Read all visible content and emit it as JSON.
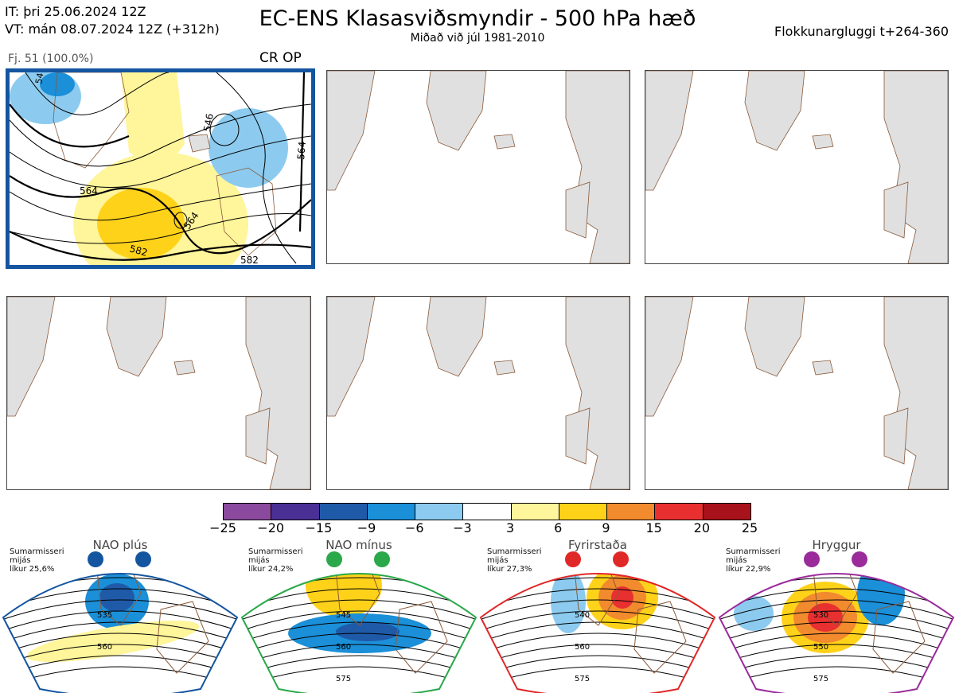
{
  "header": {
    "it_line": "IT: þri 25.06.2024 12Z",
    "vt_line": "VT: mán 08.07.2024 12Z  (+312h)",
    "title": "EC-ENS Klasasviðsmyndir - 500 hPa hæð",
    "subtitle": "Miðað við júl 1981-2010",
    "window": "Flokkunargluggi t+264-360"
  },
  "panels": [
    {
      "caption": "Fj. 51 (100.0%)",
      "tag": "CR OP",
      "active": true,
      "contours": [
        "564",
        "564",
        "546",
        "582",
        "582",
        "564",
        "54"
      ]
    },
    {
      "caption": "",
      "tag": "",
      "active": false
    },
    {
      "caption": "",
      "tag": "",
      "active": false
    },
    {
      "caption": "",
      "tag": "",
      "active": false
    },
    {
      "caption": "",
      "tag": "",
      "active": false
    },
    {
      "caption": "",
      "tag": "",
      "active": false
    }
  ],
  "colorbar": {
    "colors": [
      "#8b4a9e",
      "#4a2f94",
      "#1f5aa8",
      "#1b8fd8",
      "#8ccbef",
      "#ffffff",
      "#fff59a",
      "#ffd21a",
      "#f28a2e",
      "#e83030",
      "#a8121a"
    ],
    "ticks": [
      "−25",
      "−20",
      "−15",
      "−9",
      "−6",
      "−3",
      "3",
      "6",
      "9",
      "15",
      "20",
      "25"
    ]
  },
  "regimes": [
    {
      "title": "NAO plús",
      "note": [
        "Sumarmisseri",
        "mijás",
        "líkur 25,6%"
      ],
      "color": "#1455a0",
      "labels": [
        "535",
        "560"
      ]
    },
    {
      "title": "NAO mínus",
      "note": [
        "Sumarmisseri",
        "mijás",
        "líkur 24,2%"
      ],
      "color": "#2aa84a",
      "labels": [
        "545",
        "560",
        "575"
      ]
    },
    {
      "title": "Fyrirstaða",
      "note": [
        "Sumarmisseri",
        "mijás",
        "líkur 27,3%"
      ],
      "color": "#e02828",
      "labels": [
        "540",
        "560",
        "575"
      ]
    },
    {
      "title": "Hryggur",
      "note": [
        "Sumarmisseri",
        "mijás",
        "líkur 22,9%"
      ],
      "color": "#9b2b9b",
      "labels": [
        "530",
        "550",
        "575"
      ]
    }
  ]
}
